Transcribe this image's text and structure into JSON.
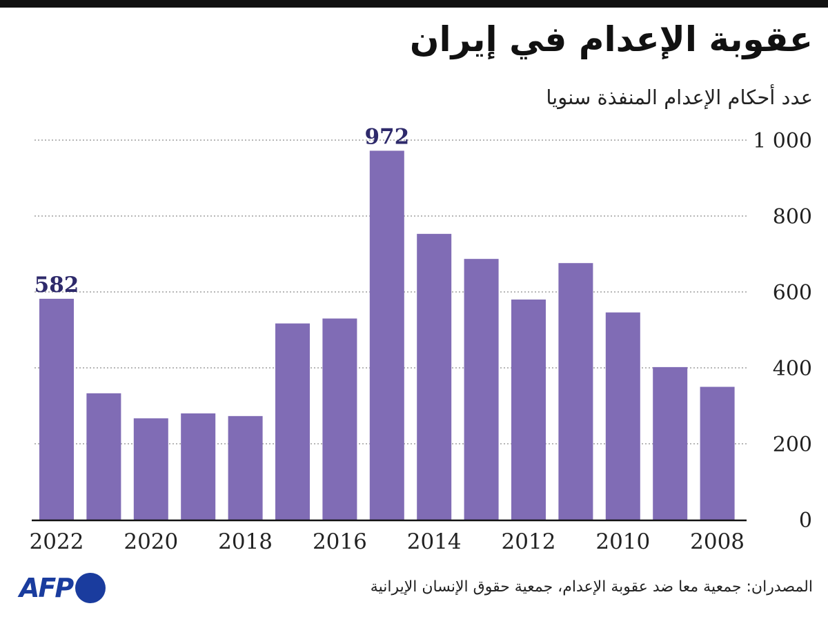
{
  "header": {
    "title": "عقوبة الإعدام في إيران",
    "subtitle": "عدد أحكام الإعدام المنفذة سنويا"
  },
  "footer": {
    "logo": "AFP",
    "source": "المصدران: جمعية معا ضد عقوبة الإعدام، جمعية حقوق الإنسان الإيرانية"
  },
  "colors": {
    "bar": "#806cb5",
    "highlight_label": "#2e2a6b",
    "grid": "#8a8a8a",
    "axis": "#111111",
    "logo": "#1a3c9e"
  },
  "chart_data": {
    "type": "bar",
    "orientation": "vertical",
    "x": [
      2022,
      2021,
      2020,
      2019,
      2018,
      2017,
      2016,
      2015,
      2014,
      2013,
      2012,
      2011,
      2010,
      2009,
      2008
    ],
    "values": [
      582,
      333,
      267,
      280,
      273,
      517,
      530,
      972,
      753,
      687,
      580,
      676,
      546,
      402,
      350
    ],
    "x_tick_labels": [
      "2022",
      "2020",
      "2018",
      "2016",
      "2014",
      "2012",
      "2010",
      "2008"
    ],
    "data_labels": [
      {
        "year": 2022,
        "text": "582"
      },
      {
        "year": 2015,
        "text": "972"
      }
    ],
    "y_ticks": [
      0,
      200,
      400,
      600,
      800,
      1000
    ],
    "y_tick_labels": [
      "0",
      "200",
      "400",
      "600",
      "800",
      "1 000"
    ],
    "ylim": [
      0,
      1000
    ],
    "y_axis_position": "right",
    "grid": true,
    "grid_style": "dotted",
    "legend": "none"
  }
}
